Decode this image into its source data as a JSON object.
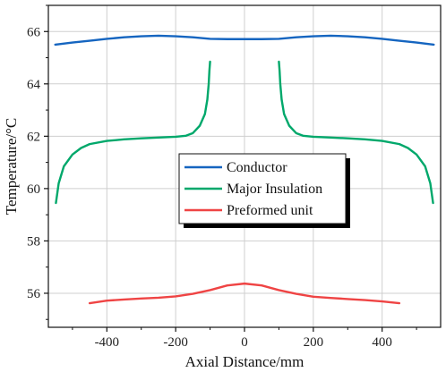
{
  "chart_data": {
    "type": "line",
    "xlabel": "Axial Distance/mm",
    "ylabel": "Temperature/°C",
    "xlim": [
      -570,
      570
    ],
    "ylim": [
      54.7,
      67.0
    ],
    "xticks": [
      -400,
      -200,
      0,
      200,
      400
    ],
    "xtick_labels": [
      "-400",
      "-200",
      "0",
      "200",
      "400"
    ],
    "yticks": [
      56,
      58,
      60,
      62,
      64,
      66
    ],
    "ytick_labels": [
      "56",
      "58",
      "60",
      "62",
      "64",
      "66"
    ],
    "grid": true,
    "legend_position": "center",
    "series": [
      {
        "name": "Conductor",
        "color": "#1565c0",
        "segments": [
          [
            [
              -550,
              65.5
            ],
            [
              -500,
              65.58
            ],
            [
              -450,
              65.65
            ],
            [
              -400,
              65.72
            ],
            [
              -350,
              65.78
            ],
            [
              -300,
              65.82
            ],
            [
              -250,
              65.84
            ],
            [
              -200,
              65.82
            ],
            [
              -150,
              65.78
            ],
            [
              -100,
              65.72
            ],
            [
              -50,
              65.71
            ],
            [
              0,
              65.71
            ],
            [
              50,
              65.71
            ],
            [
              100,
              65.72
            ],
            [
              150,
              65.78
            ],
            [
              200,
              65.82
            ],
            [
              250,
              65.84
            ],
            [
              300,
              65.82
            ],
            [
              350,
              65.78
            ],
            [
              400,
              65.72
            ],
            [
              450,
              65.65
            ],
            [
              500,
              65.58
            ],
            [
              550,
              65.5
            ]
          ]
        ]
      },
      {
        "name": "Major Insulation",
        "color": "#00a86b",
        "segments": [
          [
            [
              -548,
              59.45
            ],
            [
              -540,
              60.2
            ],
            [
              -525,
              60.85
            ],
            [
              -500,
              61.3
            ],
            [
              -475,
              61.55
            ],
            [
              -450,
              61.7
            ],
            [
              -400,
              61.82
            ],
            [
              -350,
              61.88
            ],
            [
              -300,
              61.92
            ],
            [
              -250,
              61.95
            ],
            [
              -200,
              61.98
            ],
            [
              -170,
              62.02
            ],
            [
              -150,
              62.12
            ],
            [
              -130,
              62.4
            ],
            [
              -115,
              62.85
            ],
            [
              -108,
              63.4
            ],
            [
              -104,
              64.0
            ],
            [
              -102,
              64.5
            ],
            [
              -100,
              64.85
            ]
          ],
          [
            [
              100,
              64.85
            ],
            [
              102,
              64.5
            ],
            [
              104,
              64.0
            ],
            [
              108,
              63.4
            ],
            [
              115,
              62.85
            ],
            [
              130,
              62.4
            ],
            [
              150,
              62.12
            ],
            [
              170,
              62.02
            ],
            [
              200,
              61.98
            ],
            [
              250,
              61.95
            ],
            [
              300,
              61.92
            ],
            [
              350,
              61.88
            ],
            [
              400,
              61.82
            ],
            [
              450,
              61.7
            ],
            [
              475,
              61.55
            ],
            [
              500,
              61.3
            ],
            [
              525,
              60.85
            ],
            [
              540,
              60.2
            ],
            [
              548,
              59.45
            ]
          ]
        ]
      },
      {
        "name": "Preformed unit",
        "color": "#ef4444",
        "segments": [
          [
            [
              -450,
              55.62
            ],
            [
              -400,
              55.72
            ],
            [
              -350,
              55.76
            ],
            [
              -300,
              55.8
            ],
            [
              -250,
              55.83
            ],
            [
              -200,
              55.88
            ],
            [
              -150,
              55.98
            ],
            [
              -100,
              56.12
            ],
            [
              -50,
              56.3
            ],
            [
              0,
              56.37
            ],
            [
              50,
              56.3
            ],
            [
              100,
              56.12
            ],
            [
              150,
              55.98
            ],
            [
              200,
              55.87
            ],
            [
              250,
              55.82
            ],
            [
              300,
              55.78
            ],
            [
              350,
              55.74
            ],
            [
              400,
              55.69
            ],
            [
              450,
              55.62
            ]
          ]
        ]
      }
    ]
  }
}
